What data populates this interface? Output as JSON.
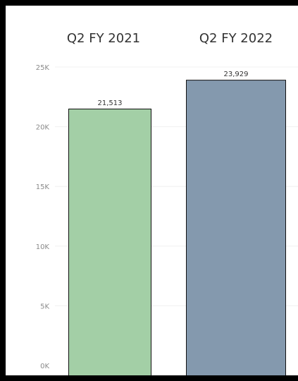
{
  "chart_data": {
    "type": "bar",
    "categories": [
      "Q2 FY 2021",
      "Q2 FY 2022"
    ],
    "values": [
      21513,
      23929
    ],
    "value_labels": [
      "21,513",
      "23,929"
    ],
    "title": "",
    "xlabel": "",
    "ylabel": "",
    "ylim": [
      0,
      25000
    ],
    "yticks": [
      0,
      5000,
      10000,
      15000,
      20000,
      25000
    ],
    "ytick_labels": [
      "0K",
      "5K",
      "10K",
      "15K",
      "20K",
      "25K"
    ],
    "grid": true,
    "legend": "none",
    "colors": [
      "#a3cfa6",
      "#8499ae"
    ],
    "bar_outline_color": "#111111"
  }
}
